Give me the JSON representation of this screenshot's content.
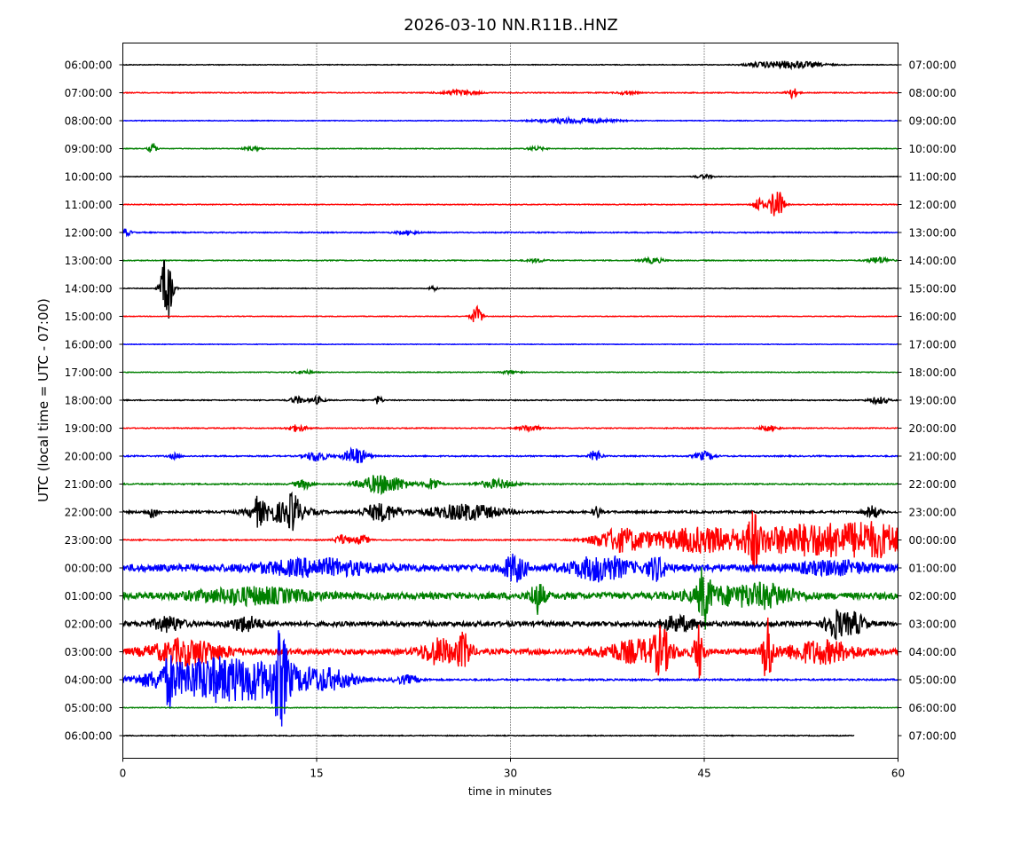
{
  "colors": {
    "cycle": [
      "#000000",
      "#ff0000",
      "#0000ff",
      "#008000"
    ]
  },
  "chart_data": {
    "type": "line",
    "title": "2026-03-10 NN.R11B..HNZ",
    "xlabel": "time in minutes",
    "ylabel": "UTC (local time = UTC - 07:00)",
    "xlim": [
      0,
      60
    ],
    "x_ticks": [
      0,
      15,
      30,
      45,
      60
    ],
    "x_tick_labels": [
      "0",
      "15",
      "30",
      "45",
      "60"
    ],
    "grid": "vertical dotted lines at 15, 30, 45 minutes",
    "left_labels": [
      "06:00:00",
      "07:00:00",
      "08:00:00",
      "09:00:00",
      "10:00:00",
      "11:00:00",
      "12:00:00",
      "13:00:00",
      "14:00:00",
      "15:00:00",
      "16:00:00",
      "17:00:00",
      "18:00:00",
      "19:00:00",
      "20:00:00",
      "21:00:00",
      "22:00:00",
      "23:00:00",
      "00:00:00",
      "01:00:00",
      "02:00:00",
      "03:00:00",
      "04:00:00",
      "05:00:00",
      "06:00:00"
    ],
    "right_labels": [
      "07:00:00",
      "08:00:00",
      "09:00:00",
      "10:00:00",
      "11:00:00",
      "12:00:00",
      "13:00:00",
      "14:00:00",
      "15:00:00",
      "16:00:00",
      "17:00:00",
      "18:00:00",
      "19:00:00",
      "20:00:00",
      "21:00:00",
      "22:00:00",
      "23:00:00",
      "00:00:00",
      "01:00:00",
      "02:00:00",
      "03:00:00",
      "04:00:00",
      "05:00:00",
      "06:00:00",
      "07:00:00"
    ],
    "traces": [
      {
        "noise": 0.4,
        "end": 60,
        "events": [
          [
            52,
            4,
            1.5
          ],
          [
            49.5,
            2,
            1.0
          ]
        ]
      },
      {
        "noise": 0.5,
        "end": 60,
        "events": [
          [
            51.8,
            6,
            0.3
          ],
          [
            26,
            3,
            1.0
          ],
          [
            39,
            2,
            0.5
          ]
        ]
      },
      {
        "noise": 0.4,
        "end": 60,
        "events": [
          [
            35,
            3,
            2.0
          ]
        ]
      },
      {
        "noise": 0.4,
        "end": 60,
        "events": [
          [
            2.3,
            7,
            0.2
          ],
          [
            10,
            2,
            0.5
          ],
          [
            32,
            2,
            0.5
          ]
        ]
      },
      {
        "noise": 0.35,
        "end": 60,
        "events": [
          [
            45,
            2,
            0.5
          ]
        ]
      },
      {
        "noise": 0.45,
        "end": 60,
        "events": [
          [
            50.6,
            20,
            0.35
          ],
          [
            49.2,
            8,
            0.3
          ]
        ]
      },
      {
        "noise": 0.6,
        "end": 60,
        "events": [
          [
            0.2,
            4,
            0.3
          ],
          [
            22,
            2,
            0.6
          ]
        ]
      },
      {
        "noise": 0.5,
        "end": 60,
        "events": [
          [
            58.5,
            4,
            0.6
          ],
          [
            41,
            3,
            0.6
          ],
          [
            32,
            2,
            0.5
          ]
        ]
      },
      {
        "noise": 0.4,
        "end": 60,
        "events": [
          [
            3.4,
            42,
            0.3
          ],
          [
            24,
            3,
            0.2
          ]
        ]
      },
      {
        "noise": 0.35,
        "end": 60,
        "events": [
          [
            27.4,
            11,
            0.3
          ]
        ]
      },
      {
        "noise": 0.35,
        "end": 60,
        "events": []
      },
      {
        "noise": 0.4,
        "end": 60,
        "events": [
          [
            14,
            2,
            0.5
          ],
          [
            30,
            2,
            0.5
          ]
        ]
      },
      {
        "noise": 0.55,
        "end": 60,
        "events": [
          [
            13.5,
            4,
            0.4
          ],
          [
            15,
            4,
            0.4
          ],
          [
            19.8,
            5,
            0.2
          ],
          [
            58.5,
            4,
            0.5
          ]
        ]
      },
      {
        "noise": 0.5,
        "end": 60,
        "events": [
          [
            13.5,
            4,
            0.5
          ],
          [
            31.5,
            4,
            0.5
          ],
          [
            50,
            3,
            0.5
          ]
        ]
      },
      {
        "noise": 0.7,
        "end": 60,
        "events": [
          [
            15,
            6,
            0.6
          ],
          [
            18,
            10,
            0.6
          ],
          [
            36.6,
            7,
            0.3
          ],
          [
            45,
            5,
            0.5
          ],
          [
            4,
            3,
            0.3
          ]
        ]
      },
      {
        "noise": 0.7,
        "end": 60,
        "events": [
          [
            14,
            5,
            0.5
          ],
          [
            19.5,
            8,
            1.0
          ],
          [
            21,
            6,
            1.0
          ],
          [
            24,
            7,
            0.4
          ],
          [
            29,
            5,
            1.0
          ]
        ]
      },
      {
        "noise": 1.2,
        "end": 60,
        "events": [
          [
            10.4,
            12,
            0.3
          ],
          [
            12.2,
            11,
            1.5
          ],
          [
            13.2,
            15,
            0.3
          ],
          [
            20,
            10,
            1.0
          ],
          [
            26.5,
            9,
            2.0
          ],
          [
            36.7,
            7,
            0.2
          ],
          [
            58,
            7,
            0.4
          ],
          [
            2.3,
            6,
            0.3
          ]
        ]
      },
      {
        "noise": 0.6,
        "end": 60,
        "events": [
          [
            17,
            6,
            0.4
          ],
          [
            18.5,
            5,
            0.4
          ],
          [
            38.5,
            13,
            1.5
          ],
          [
            44.5,
            14,
            2.5
          ],
          [
            48.8,
            26,
            0.3
          ],
          [
            53,
            19,
            3.5
          ],
          [
            58.5,
            15,
            2.0
          ]
        ]
      },
      {
        "noise": 4.0,
        "end": 60,
        "events": [
          [
            30.3,
            14,
            0.6
          ],
          [
            37,
            13,
            1.5
          ],
          [
            41.3,
            12,
            0.5
          ],
          [
            15,
            8,
            3.0
          ],
          [
            55,
            6,
            2.0
          ]
        ]
      },
      {
        "noise": 3.8,
        "end": 60,
        "events": [
          [
            32.1,
            18,
            0.35
          ],
          [
            45,
            30,
            0.3
          ],
          [
            50,
            10,
            1.5
          ],
          [
            10,
            8,
            3.0
          ],
          [
            46.5,
            8,
            2.0
          ]
        ]
      },
      {
        "noise": 2.6,
        "end": 60,
        "events": [
          [
            3.5,
            8,
            0.8
          ],
          [
            9.5,
            8,
            0.8
          ],
          [
            55.1,
            16,
            0.5
          ],
          [
            43,
            8,
            1.0
          ],
          [
            56.6,
            12,
            0.6
          ]
        ]
      },
      {
        "noise": 3.0,
        "end": 60,
        "events": [
          [
            49.9,
            42,
            0.25
          ],
          [
            44.6,
            30,
            0.25
          ],
          [
            41.7,
            20,
            0.4
          ],
          [
            26.4,
            18,
            0.4
          ],
          [
            5,
            14,
            2.0
          ],
          [
            24.5,
            14,
            1.0
          ],
          [
            40,
            12,
            2.0
          ],
          [
            54,
            12,
            2.0
          ]
        ]
      },
      {
        "noise": 0.9,
        "end": 60,
        "events": [
          [
            6,
            20,
            3.0
          ],
          [
            12.2,
            40,
            0.4
          ],
          [
            3.6,
            17,
            0.3
          ],
          [
            11,
            16,
            3.0
          ],
          [
            16,
            9,
            1.5
          ],
          [
            22,
            5,
            0.7
          ]
        ]
      },
      {
        "noise": 0.45,
        "end": 60,
        "events": []
      },
      {
        "noise": 0.5,
        "end": 56.6,
        "events": []
      }
    ]
  }
}
